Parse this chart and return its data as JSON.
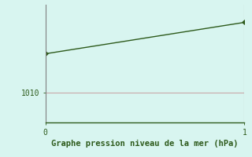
{
  "x": [
    0,
    1
  ],
  "y": [
    1014.0,
    1017.2
  ],
  "line_color": "#2d5a1b",
  "marker_color": "#2d5a1b",
  "background_color": "#d8f5f0",
  "grid_color_h": "#c8a8a8",
  "grid_color_v": "#b0b0b0",
  "xlabel": "Graphe pression niveau de la mer (hPa)",
  "xlabel_color": "#2d5a1b",
  "ytick_label": "1010",
  "ytick_value": 1010,
  "ylim": [
    1007,
    1019
  ],
  "xlim": [
    0,
    1
  ],
  "xticks": [
    0,
    1
  ],
  "yticks": [
    1010
  ],
  "tick_color": "#2d5a1b",
  "spine_color": "#808080",
  "bottom_spine_color": "#2d5a1b",
  "font_family": "monospace"
}
